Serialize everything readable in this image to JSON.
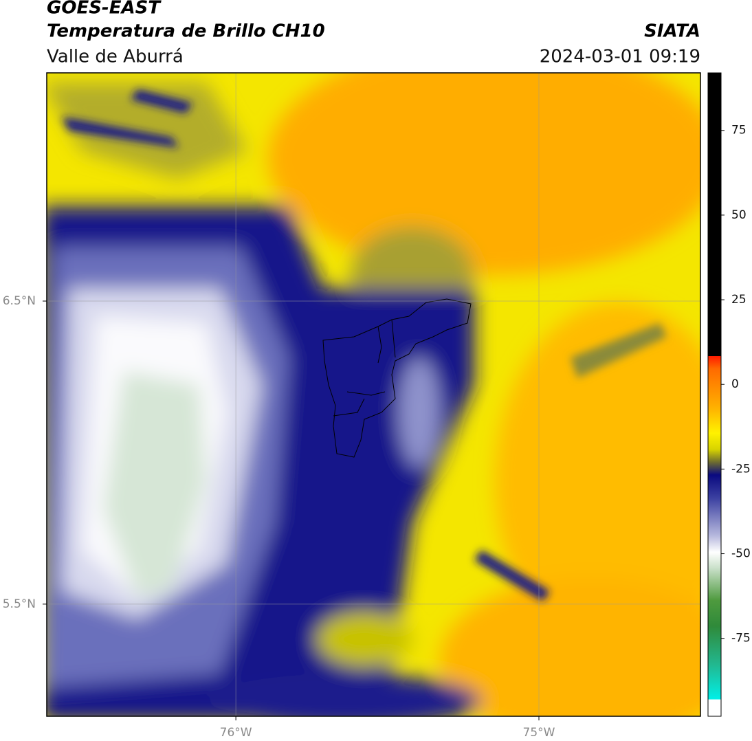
{
  "header": {
    "title": "GOES-EAST",
    "subtitle": "Temperatura de Brillo CH10",
    "region": "Valle de Aburrá",
    "source": "SIATA",
    "timestamp": "2024-03-01 09:19"
  },
  "map": {
    "xlim": [
      -76.624,
      -74.467
    ],
    "ylim": [
      5.13,
      7.253
    ],
    "xticks": [
      {
        "value": -76,
        "label": "76°W"
      },
      {
        "value": -75,
        "label": "75°W"
      }
    ],
    "yticks": [
      {
        "value": 6.5,
        "label": "6.5°N"
      },
      {
        "value": 5.5,
        "label": "5.5°N"
      }
    ],
    "grid": true
  },
  "colorbar": {
    "lim": [
      -98,
      92
    ],
    "ticks": [
      75,
      50,
      25,
      0,
      -25,
      -50,
      -75
    ]
  }
}
